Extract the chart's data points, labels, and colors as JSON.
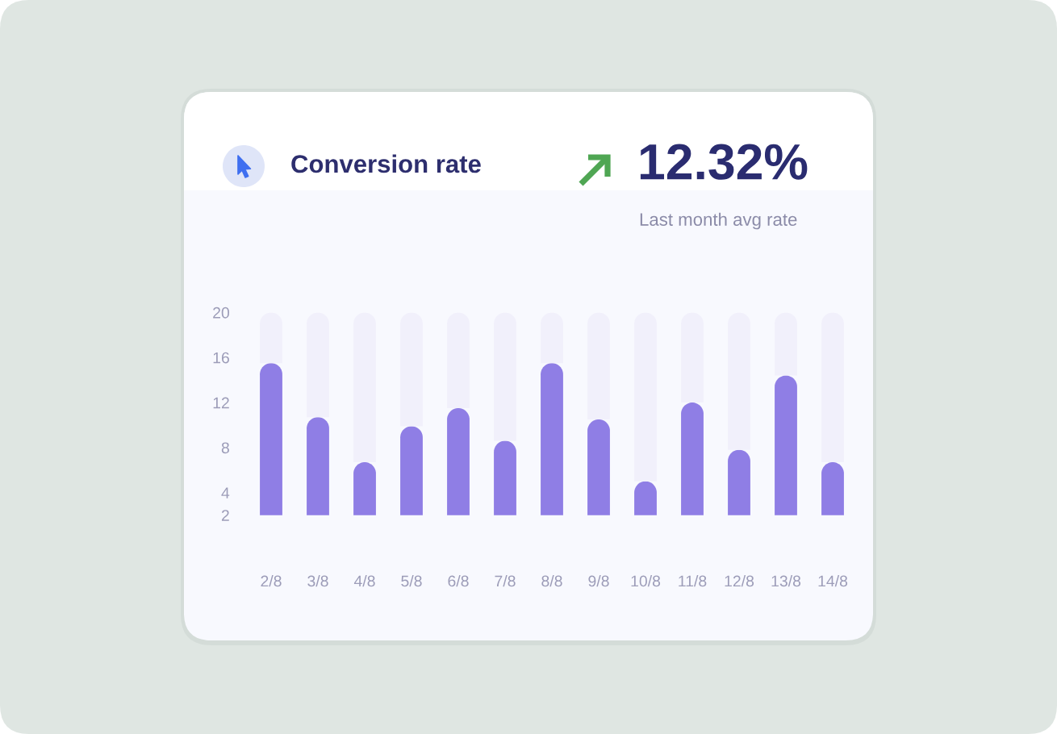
{
  "chart_data": {
    "type": "bar",
    "title": "Conversion rate",
    "annotations": [
      "12.32%",
      "Last month avg rate"
    ],
    "categories": [
      "2/8",
      "3/8",
      "4/8",
      "5/8",
      "6/8",
      "7/8",
      "8/8",
      "9/8",
      "10/8",
      "11/8",
      "12/8",
      "13/8",
      "14/8"
    ],
    "stacked": true,
    "series": [
      {
        "color": "#8f7ee5",
        "values": [
          15.5,
          10.7,
          6.7,
          9.9,
          11.5,
          8.6,
          15.5,
          10.5,
          5.0,
          12.0,
          7.8,
          14.4,
          6.7
        ]
      },
      {
        "color": "#f1f0fb",
        "values": [
          4.5,
          9.3,
          13.3,
          10.1,
          8.5,
          11.4,
          4.5,
          9.5,
          15.0,
          8.0,
          12.2,
          5.6,
          13.3
        ]
      }
    ],
    "ylim": [
      2,
      20
    ],
    "yticks": [
      2,
      4,
      8,
      12,
      16,
      20
    ]
  }
}
